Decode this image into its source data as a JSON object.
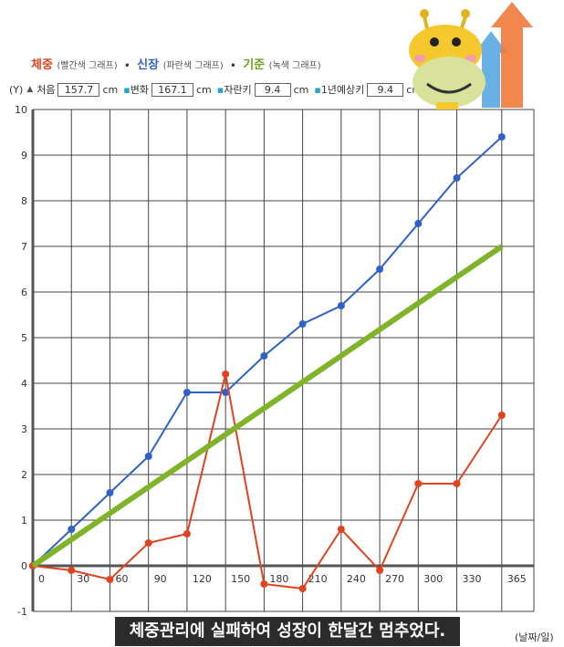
{
  "legend": {
    "weight": "체중",
    "weight_sub": "(빨간색 그래프)",
    "height": "신장",
    "height_sub": "(파란색 그래프)",
    "base": "기준",
    "base_sub": "(녹색 그래프)"
  },
  "info": {
    "y_label": "(Y)",
    "first_label": "처음",
    "first_value": "157.7",
    "first_unit": "cm",
    "change_label": "변화",
    "change_value": "167.1",
    "change_unit": "cm",
    "grown_label": "자란키",
    "grown_value": "9.4",
    "grown_unit": "cm",
    "yearly_label": "1년예상키",
    "yearly_value": "9.4",
    "yearly_unit": "cm"
  },
  "caption": "체중관리에 실패하여 성장이 한달간 멈추었다.",
  "x_unit": "(날짜/일)",
  "colors": {
    "weight": "#e0431d",
    "height": "#2f62c9",
    "base": "#80b428"
  },
  "chart_data": {
    "type": "line",
    "x_ticks": [
      0,
      30,
      60,
      90,
      120,
      150,
      180,
      210,
      240,
      270,
      300,
      330,
      365
    ],
    "y_ticks": [
      -1,
      0,
      1,
      2,
      3,
      4,
      5,
      6,
      7,
      8,
      9,
      10
    ],
    "xlim": [
      0,
      390
    ],
    "ylim": [
      -1,
      10
    ],
    "grid": true,
    "series": [
      {
        "key": "height",
        "name": "신장",
        "x": [
          0,
          30,
          60,
          90,
          120,
          150,
          180,
          210,
          240,
          270,
          300,
          330,
          365
        ],
        "y": [
          0,
          0.8,
          1.6,
          2.4,
          3.8,
          3.8,
          4.6,
          5.3,
          5.7,
          6.5,
          7.5,
          8.5,
          9.4
        ]
      },
      {
        "key": "weight",
        "name": "체중",
        "x": [
          0,
          30,
          60,
          90,
          120,
          150,
          180,
          210,
          240,
          270,
          300,
          330,
          365
        ],
        "y": [
          0,
          -0.1,
          -0.3,
          0.5,
          0.7,
          4.2,
          -0.4,
          -0.5,
          0.8,
          -0.1,
          1.8,
          1.8,
          3.3
        ]
      },
      {
        "key": "base",
        "name": "기준",
        "x": [
          0,
          365
        ],
        "y": [
          0,
          7.0
        ]
      }
    ]
  }
}
